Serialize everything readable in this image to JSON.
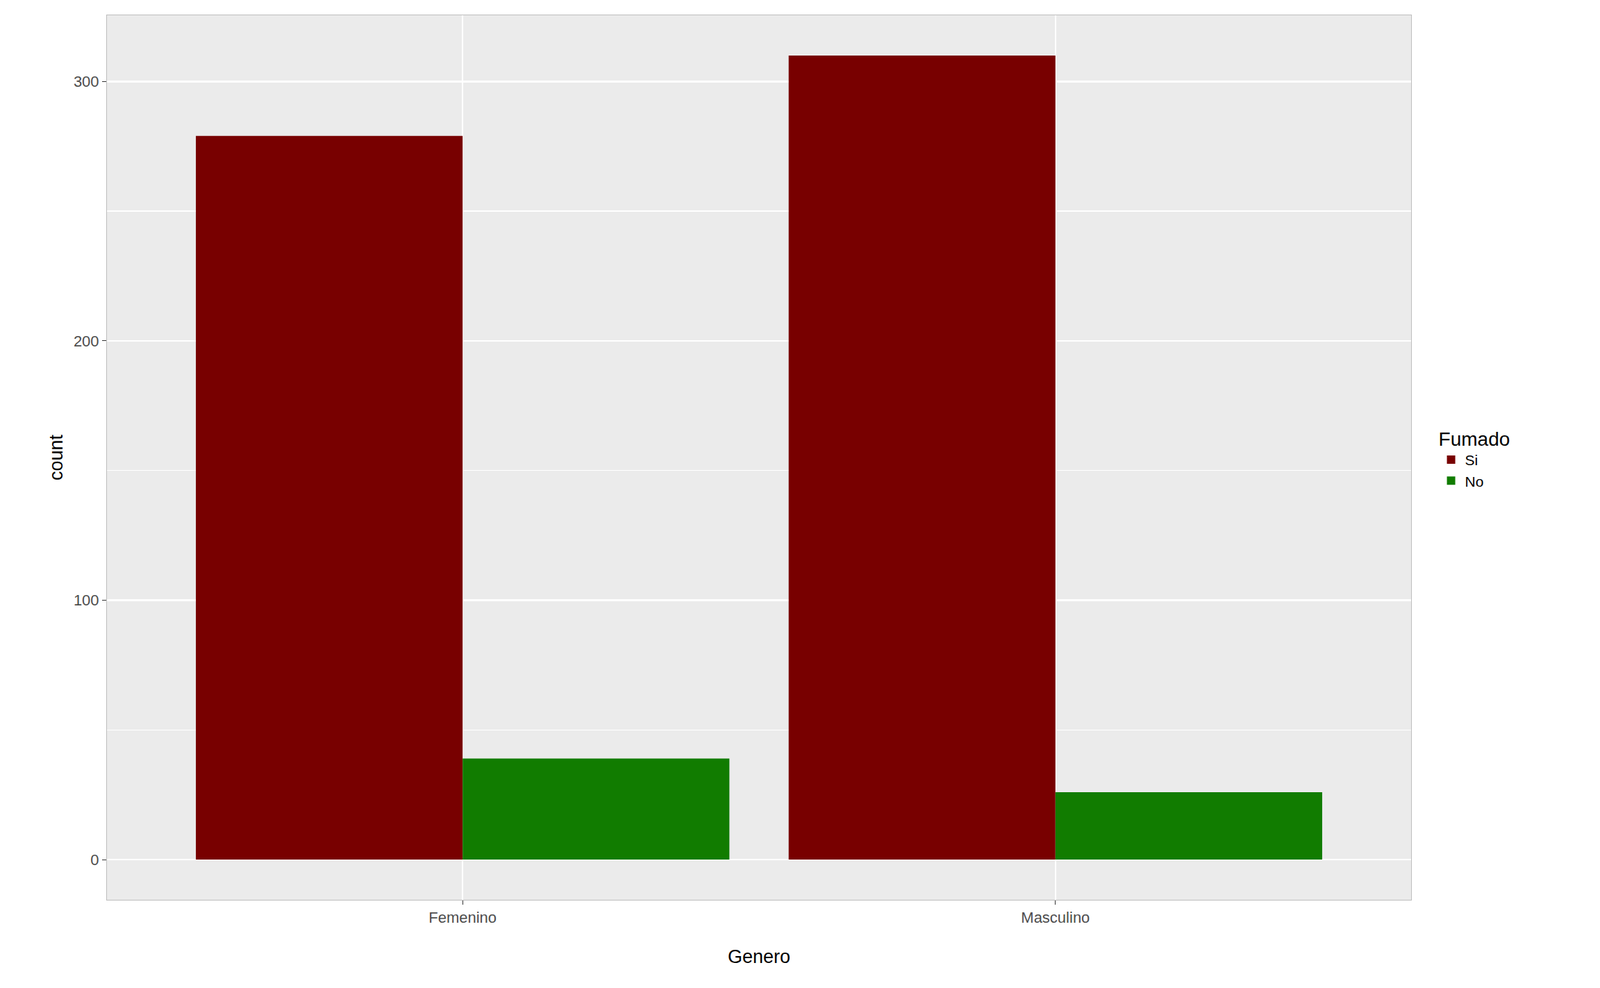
{
  "chart_data": {
    "type": "bar",
    "x_label": "Genero",
    "y_label": "count",
    "categories": [
      "Femenino",
      "Masculino"
    ],
    "series": [
      {
        "name": "Si",
        "color": "#780000",
        "values": [
          279,
          310
        ]
      },
      {
        "name": "No",
        "color": "#117C00",
        "values": [
          39,
          26
        ]
      }
    ],
    "legend_title": "Fumado",
    "legend": "right",
    "ylim": [
      -15.5,
      325.5
    ],
    "yticks": [
      0,
      100,
      200,
      300
    ],
    "grid": true
  }
}
